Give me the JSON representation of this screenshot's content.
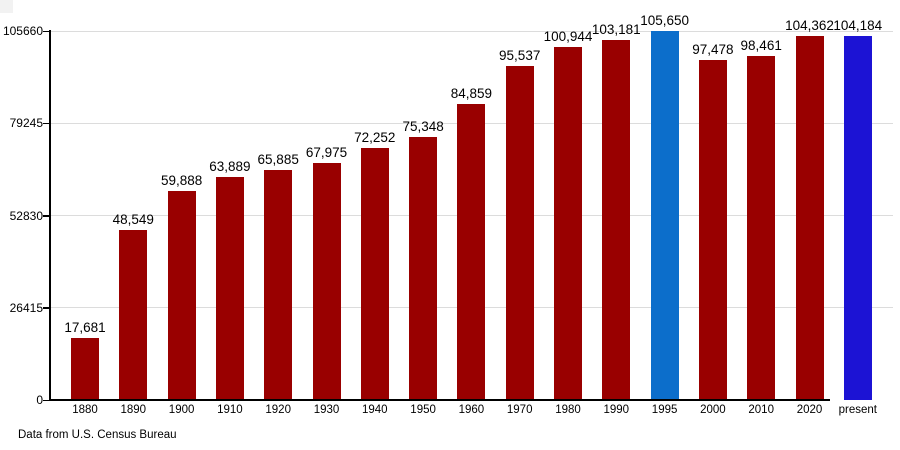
{
  "chart_data": {
    "type": "bar",
    "title": "",
    "xlabel": "",
    "ylabel": "",
    "categories": [
      "1880",
      "1890",
      "1900",
      "1910",
      "1920",
      "1930",
      "1940",
      "1950",
      "1960",
      "1970",
      "1980",
      "1990",
      "1995",
      "2000",
      "2010",
      "2020",
      "present"
    ],
    "values": [
      17681,
      48549,
      59888,
      63889,
      65885,
      67975,
      72252,
      75348,
      84859,
      95537,
      100944,
      103181,
      105650,
      97478,
      98461,
      104362,
      104184
    ],
    "value_labels": [
      "17,681",
      "48,549",
      "59,888",
      "63,889",
      "65,885",
      "67,975",
      "72,252",
      "75,348",
      "84,859",
      "95,537",
      "100,944",
      "103,181",
      "105,650",
      "97,478",
      "98,461",
      "104,362",
      "104,184"
    ],
    "bar_colors": [
      "#990000",
      "#990000",
      "#990000",
      "#990000",
      "#990000",
      "#990000",
      "#990000",
      "#990000",
      "#990000",
      "#990000",
      "#990000",
      "#990000",
      "#0c6ecb",
      "#990000",
      "#990000",
      "#990000",
      "#1c13d4"
    ],
    "y_ticks": [
      0,
      26415,
      52830,
      79245,
      105660
    ],
    "y_tick_labels": [
      "0",
      "26415",
      "52830",
      "79245",
      "105660"
    ],
    "ylim": [
      0,
      105660
    ],
    "grid": true,
    "legend": null,
    "footnote": "Data from U.S. Census Bureau"
  },
  "colors": {
    "bar_default": "#990000",
    "bar_highlight_1995": "#0c6ecb",
    "bar_highlight_present": "#1c13d4",
    "gridline": "#dcdcdc",
    "axis": "#000000",
    "background": "#ffffff"
  }
}
